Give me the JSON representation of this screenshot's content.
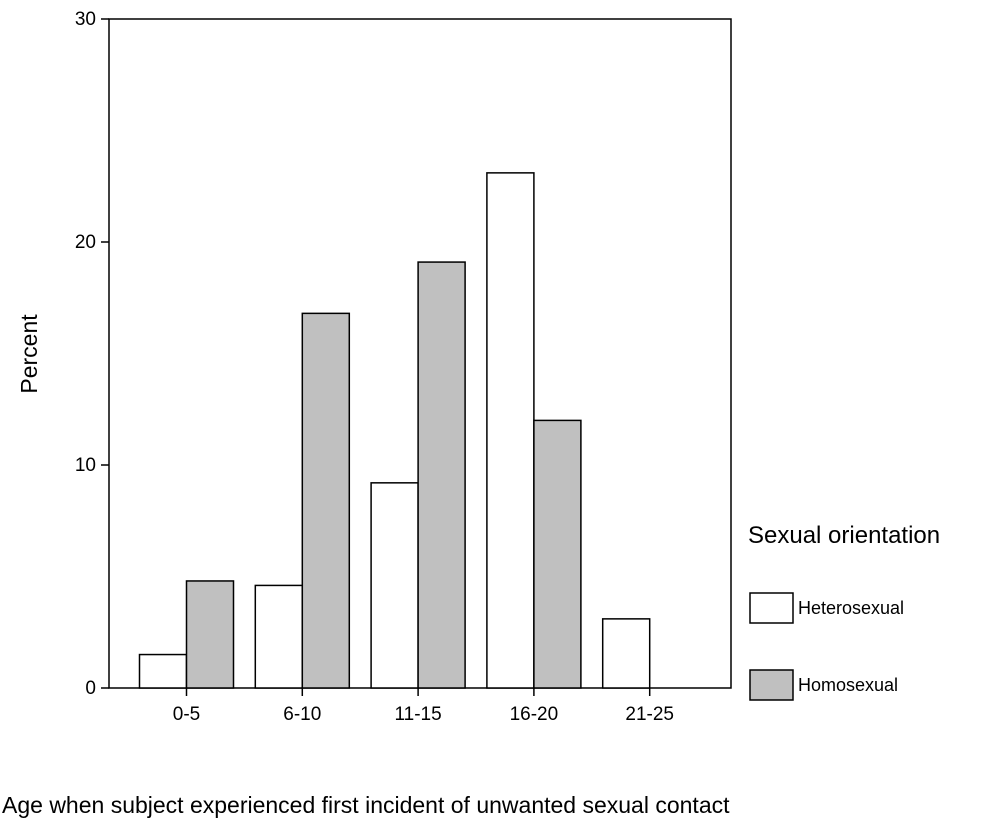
{
  "chart_data": {
    "type": "bar",
    "categories": [
      "0-5",
      "6-10",
      "11-15",
      "16-20",
      "21-25"
    ],
    "series": [
      {
        "name": "Heterosexual",
        "values": [
          1.5,
          4.6,
          9.2,
          23.1,
          3.1
        ],
        "color": "#ffffff"
      },
      {
        "name": "Homosexual",
        "values": [
          4.8,
          16.8,
          19.1,
          12.0,
          null
        ],
        "color": "#c0c0c0"
      }
    ],
    "title": "",
    "xlabel": "Age when subject experienced first incident of unwanted sexual contact",
    "ylabel": "Percent",
    "ylim": [
      0,
      30
    ],
    "yticks": [
      "0",
      "10",
      "20",
      "30"
    ],
    "grid": false,
    "legend": {
      "title": "Sexual orientation",
      "position": "right"
    }
  }
}
